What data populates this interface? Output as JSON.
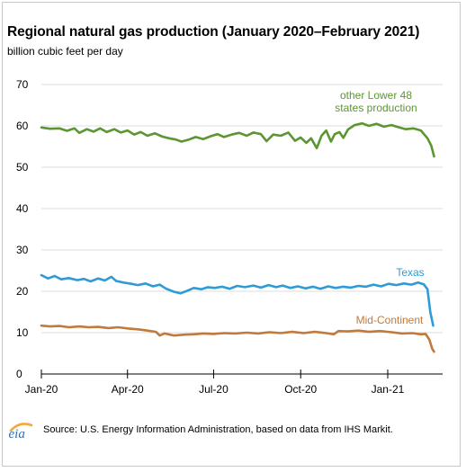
{
  "chart_data": {
    "type": "line",
    "title": "Regional natural gas production (January 2020–February 2021)",
    "subtitle": "billion cubic feet per day",
    "ylim": [
      0,
      70
    ],
    "yticks": [
      0,
      10,
      20,
      30,
      40,
      50,
      60,
      70
    ],
    "xlim": [
      "2020-01-01",
      "2021-02-28"
    ],
    "xticks": [
      {
        "date": "2020-01-01",
        "label": "Jan-20"
      },
      {
        "date": "2020-04-01",
        "label": "Apr-20"
      },
      {
        "date": "2020-07-01",
        "label": "Jul-20"
      },
      {
        "date": "2020-10-01",
        "label": "Oct-20"
      },
      {
        "date": "2021-01-01",
        "label": "Jan-21"
      }
    ],
    "grid": "horizontal",
    "series": [
      {
        "name": "other Lower 48 states production",
        "label_lines": [
          "other Lower 48",
          "states production"
        ],
        "color": "#5b9632",
        "points": [
          [
            "2020-01-01",
            59.6
          ],
          [
            "2020-01-10",
            59.3
          ],
          [
            "2020-01-20",
            59.4
          ],
          [
            "2020-01-28",
            58.8
          ],
          [
            "2020-02-05",
            59.4
          ],
          [
            "2020-02-10",
            58.3
          ],
          [
            "2020-02-18",
            59.2
          ],
          [
            "2020-02-25",
            58.6
          ],
          [
            "2020-03-03",
            59.4
          ],
          [
            "2020-03-10",
            58.5
          ],
          [
            "2020-03-18",
            59.2
          ],
          [
            "2020-03-25",
            58.4
          ],
          [
            "2020-04-01",
            58.9
          ],
          [
            "2020-04-08",
            57.9
          ],
          [
            "2020-04-15",
            58.5
          ],
          [
            "2020-04-22",
            57.6
          ],
          [
            "2020-04-30",
            58.2
          ],
          [
            "2020-05-08",
            57.4
          ],
          [
            "2020-05-15",
            57.0
          ],
          [
            "2020-05-22",
            56.7
          ],
          [
            "2020-05-28",
            56.2
          ],
          [
            "2020-06-05",
            56.7
          ],
          [
            "2020-06-12",
            57.3
          ],
          [
            "2020-06-20",
            56.8
          ],
          [
            "2020-06-28",
            57.5
          ],
          [
            "2020-07-05",
            58.0
          ],
          [
            "2020-07-12",
            57.3
          ],
          [
            "2020-07-20",
            57.9
          ],
          [
            "2020-07-28",
            58.3
          ],
          [
            "2020-08-05",
            57.6
          ],
          [
            "2020-08-12",
            58.4
          ],
          [
            "2020-08-20",
            58.0
          ],
          [
            "2020-08-26",
            56.3
          ],
          [
            "2020-09-02",
            57.9
          ],
          [
            "2020-09-10",
            57.6
          ],
          [
            "2020-09-18",
            58.4
          ],
          [
            "2020-09-25",
            56.4
          ],
          [
            "2020-10-01",
            57.2
          ],
          [
            "2020-10-07",
            55.9
          ],
          [
            "2020-10-12",
            57.0
          ],
          [
            "2020-10-18",
            54.6
          ],
          [
            "2020-10-23",
            57.6
          ],
          [
            "2020-10-28",
            58.9
          ],
          [
            "2020-11-02",
            56.2
          ],
          [
            "2020-11-06",
            58.0
          ],
          [
            "2020-11-11",
            58.5
          ],
          [
            "2020-11-15",
            57.1
          ],
          [
            "2020-11-20",
            59.1
          ],
          [
            "2020-11-27",
            60.2
          ],
          [
            "2020-12-05",
            60.6
          ],
          [
            "2020-12-12",
            60.0
          ],
          [
            "2020-12-20",
            60.5
          ],
          [
            "2020-12-28",
            59.8
          ],
          [
            "2021-01-05",
            60.2
          ],
          [
            "2021-01-12",
            59.7
          ],
          [
            "2021-01-20",
            59.2
          ],
          [
            "2021-01-28",
            59.4
          ],
          [
            "2021-02-05",
            58.9
          ],
          [
            "2021-02-12",
            57.0
          ],
          [
            "2021-02-16",
            55.2
          ],
          [
            "2021-02-19",
            52.6
          ]
        ]
      },
      {
        "name": "Texas",
        "label_lines": [
          "Texas"
        ],
        "color": "#2e9bd6",
        "points": [
          [
            "2020-01-01",
            23.9
          ],
          [
            "2020-01-08",
            23.1
          ],
          [
            "2020-01-15",
            23.7
          ],
          [
            "2020-01-22",
            22.9
          ],
          [
            "2020-01-30",
            23.2
          ],
          [
            "2020-02-08",
            22.7
          ],
          [
            "2020-02-15",
            23.0
          ],
          [
            "2020-02-22",
            22.4
          ],
          [
            "2020-03-01",
            23.1
          ],
          [
            "2020-03-08",
            22.6
          ],
          [
            "2020-03-15",
            23.5
          ],
          [
            "2020-03-20",
            22.5
          ],
          [
            "2020-03-28",
            22.1
          ],
          [
            "2020-04-05",
            21.8
          ],
          [
            "2020-04-12",
            21.5
          ],
          [
            "2020-04-20",
            21.9
          ],
          [
            "2020-04-28",
            21.2
          ],
          [
            "2020-05-05",
            21.6
          ],
          [
            "2020-05-12",
            20.6
          ],
          [
            "2020-05-20",
            19.9
          ],
          [
            "2020-05-27",
            19.5
          ],
          [
            "2020-06-03",
            20.1
          ],
          [
            "2020-06-10",
            20.8
          ],
          [
            "2020-06-18",
            20.5
          ],
          [
            "2020-06-25",
            21.0
          ],
          [
            "2020-07-02",
            20.8
          ],
          [
            "2020-07-10",
            21.1
          ],
          [
            "2020-07-18",
            20.6
          ],
          [
            "2020-07-26",
            21.3
          ],
          [
            "2020-08-03",
            21.0
          ],
          [
            "2020-08-12",
            21.4
          ],
          [
            "2020-08-20",
            20.9
          ],
          [
            "2020-08-28",
            21.5
          ],
          [
            "2020-09-05",
            21.0
          ],
          [
            "2020-09-12",
            21.4
          ],
          [
            "2020-09-20",
            20.8
          ],
          [
            "2020-09-28",
            21.2
          ],
          [
            "2020-10-06",
            20.7
          ],
          [
            "2020-10-14",
            21.1
          ],
          [
            "2020-10-22",
            20.6
          ],
          [
            "2020-10-30",
            21.2
          ],
          [
            "2020-11-07",
            20.8
          ],
          [
            "2020-11-15",
            21.1
          ],
          [
            "2020-11-23",
            20.9
          ],
          [
            "2020-12-01",
            21.3
          ],
          [
            "2020-12-09",
            21.1
          ],
          [
            "2020-12-17",
            21.6
          ],
          [
            "2020-12-25",
            21.2
          ],
          [
            "2021-01-02",
            21.8
          ],
          [
            "2021-01-10",
            21.5
          ],
          [
            "2021-01-18",
            21.9
          ],
          [
            "2021-01-26",
            21.6
          ],
          [
            "2021-02-02",
            22.1
          ],
          [
            "2021-02-08",
            21.7
          ],
          [
            "2021-02-12",
            20.5
          ],
          [
            "2021-02-15",
            15.0
          ],
          [
            "2021-02-18",
            11.7
          ]
        ]
      },
      {
        "name": "Mid-Continent",
        "label_lines": [
          "Mid-Continent"
        ],
        "color": "#c07a3c",
        "points": [
          [
            "2020-01-01",
            11.7
          ],
          [
            "2020-01-10",
            11.5
          ],
          [
            "2020-01-20",
            11.6
          ],
          [
            "2020-01-30",
            11.3
          ],
          [
            "2020-02-10",
            11.5
          ],
          [
            "2020-02-20",
            11.3
          ],
          [
            "2020-03-01",
            11.4
          ],
          [
            "2020-03-12",
            11.1
          ],
          [
            "2020-03-22",
            11.3
          ],
          [
            "2020-04-02",
            11.0
          ],
          [
            "2020-04-12",
            10.8
          ],
          [
            "2020-04-22",
            10.5
          ],
          [
            "2020-05-01",
            10.2
          ],
          [
            "2020-05-05",
            9.3
          ],
          [
            "2020-05-10",
            9.8
          ],
          [
            "2020-05-20",
            9.3
          ],
          [
            "2020-05-30",
            9.5
          ],
          [
            "2020-06-10",
            9.6
          ],
          [
            "2020-06-20",
            9.8
          ],
          [
            "2020-07-01",
            9.7
          ],
          [
            "2020-07-12",
            9.9
          ],
          [
            "2020-07-24",
            9.8
          ],
          [
            "2020-08-05",
            10.0
          ],
          [
            "2020-08-17",
            9.8
          ],
          [
            "2020-08-29",
            10.1
          ],
          [
            "2020-09-10",
            9.9
          ],
          [
            "2020-09-22",
            10.2
          ],
          [
            "2020-10-04",
            9.9
          ],
          [
            "2020-10-16",
            10.2
          ],
          [
            "2020-10-28",
            9.9
          ],
          [
            "2020-11-05",
            9.6
          ],
          [
            "2020-11-10",
            10.4
          ],
          [
            "2020-11-20",
            10.3
          ],
          [
            "2020-12-01",
            10.5
          ],
          [
            "2020-12-12",
            10.2
          ],
          [
            "2020-12-24",
            10.4
          ],
          [
            "2021-01-05",
            10.1
          ],
          [
            "2021-01-16",
            9.8
          ],
          [
            "2021-01-27",
            9.9
          ],
          [
            "2021-02-05",
            9.6
          ],
          [
            "2021-02-10",
            9.7
          ],
          [
            "2021-02-14",
            8.3
          ],
          [
            "2021-02-17",
            6.1
          ],
          [
            "2021-02-19",
            5.4
          ]
        ]
      }
    ],
    "source": "Source: U.S. Energy Information Administration, based on data from IHS Markit."
  },
  "logo": {
    "text": "eia",
    "color": "#2f6eb3",
    "arc_color": "#f2a93b"
  }
}
